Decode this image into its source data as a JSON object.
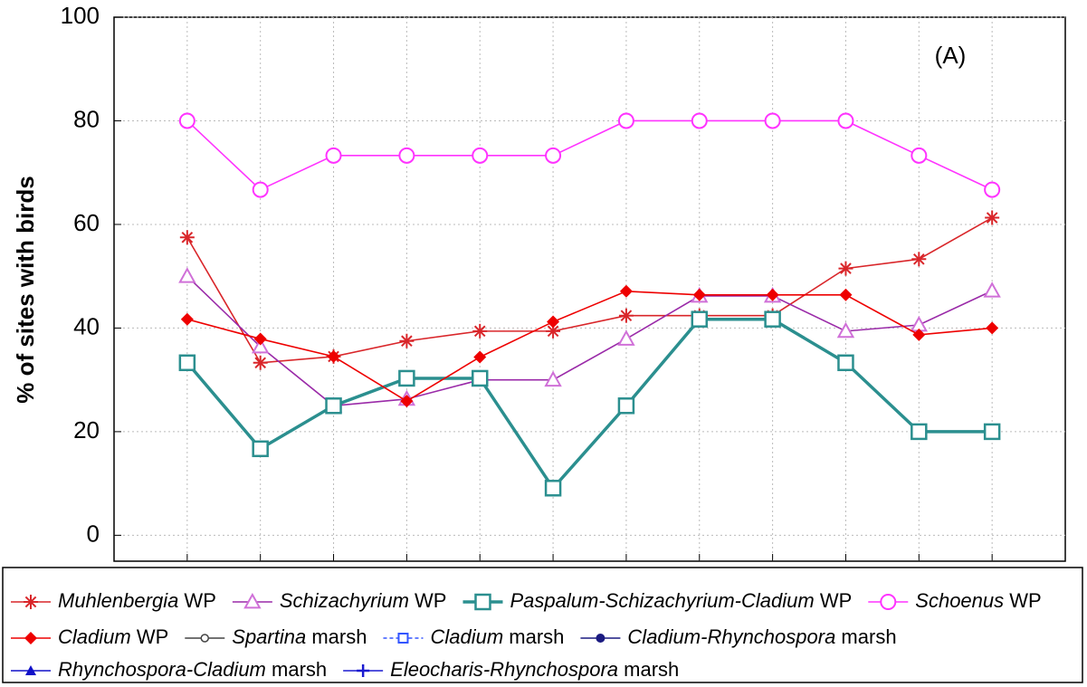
{
  "chart_data": {
    "type": "line",
    "y_label": "% of sites with birds",
    "annotation": "(A)",
    "categories": [
      null,
      null,
      null,
      null,
      null,
      null,
      null,
      null,
      null,
      null,
      null,
      null
    ],
    "ylim": [
      -5,
      100
    ],
    "yticks": [
      0,
      20,
      40,
      60,
      80,
      100
    ],
    "grid": true,
    "series": [
      {
        "name": "Muhlenbergia WP",
        "color": "#d9262a",
        "marker": "asterisk",
        "values": [
          57.5,
          33.3,
          34.5,
          37.5,
          39.4,
          39.4,
          42.4,
          42.4,
          42.4,
          51.5,
          53.3,
          61.3
        ]
      },
      {
        "name": "Schizachyrium WP",
        "color": "#9a2aa8",
        "marker": "triangle-open",
        "values": [
          50,
          36.4,
          25,
          26.3,
          30,
          30,
          37.9,
          46.2,
          46.2,
          39.4,
          40.6,
          47.2
        ]
      },
      {
        "name": "Paspalum-Schizachyrium-Cladium WP",
        "color": "#2b8f8f",
        "marker": "square-open",
        "values": [
          33.3,
          16.7,
          25,
          30.3,
          30.3,
          9.1,
          25,
          41.7,
          41.7,
          33.3,
          20,
          20
        ]
      },
      {
        "name": "Schoenus WP",
        "color": "#ff33ff",
        "marker": "circle-open",
        "values": [
          80,
          66.7,
          73.3,
          73.3,
          73.3,
          73.3,
          80,
          80,
          80,
          80,
          73.3,
          66.7
        ]
      },
      {
        "name": "Cladium WP",
        "color": "#ee0000",
        "marker": "diamond",
        "values": [
          41.7,
          37.9,
          34.5,
          25.9,
          34.4,
          41.2,
          47.1,
          46.4,
          46.4,
          46.4,
          38.7,
          40
        ]
      },
      {
        "name": "Spartina marsh",
        "color": "#444444",
        "marker": "circle-small",
        "values": [
          null,
          null,
          null,
          null,
          null,
          null,
          null,
          null,
          null,
          null,
          null,
          null
        ]
      },
      {
        "name": "Cladium marsh",
        "color": "#3355ff",
        "marker": "square-dashed",
        "values": [
          null,
          null,
          null,
          null,
          null,
          null,
          null,
          null,
          null,
          null,
          null,
          null
        ]
      },
      {
        "name": "Cladium-Rhynchospora marsh",
        "color": "#1a1a80",
        "marker": "circle-filled",
        "values": [
          null,
          null,
          null,
          null,
          null,
          null,
          null,
          null,
          null,
          null,
          null,
          null
        ]
      },
      {
        "name": "Rhynchospora-Cladium marsh",
        "color": "#1010c8",
        "marker": "triangle-filled",
        "values": [
          null,
          null,
          null,
          null,
          null,
          null,
          null,
          null,
          null,
          null,
          null,
          null
        ]
      },
      {
        "name": "Eleocharis-Rhynchospora marsh",
        "color": "#1a1ad0",
        "marker": "plus",
        "values": [
          null,
          null,
          null,
          null,
          null,
          null,
          null,
          null,
          null,
          null,
          null,
          null
        ]
      }
    ]
  }
}
